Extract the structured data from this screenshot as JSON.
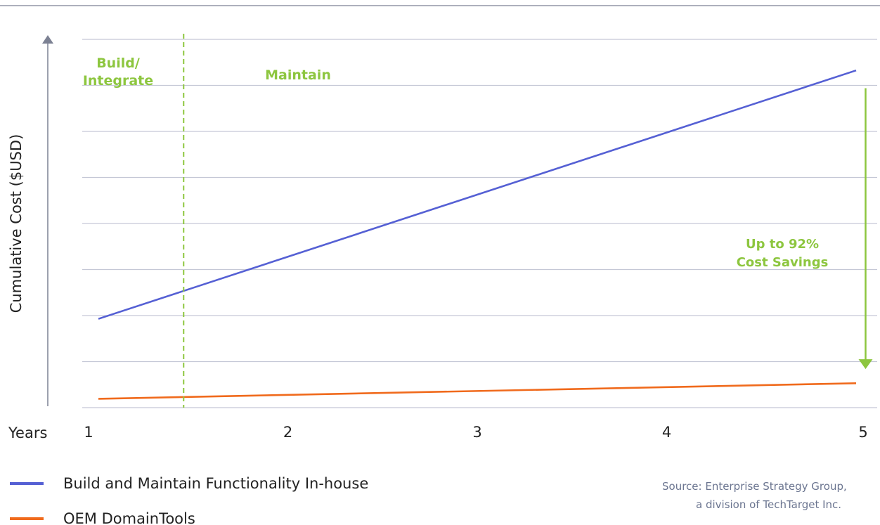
{
  "chart_data": {
    "type": "line",
    "xlabel": "Years",
    "ylabel": "Cumulative Cost ($USD)",
    "x": [
      1,
      2,
      3,
      4,
      5
    ],
    "xlim": [
      1,
      5
    ],
    "ylim": [
      0,
      8.3
    ],
    "grid": "horizontal",
    "legend_placement": "bottom-left",
    "series": [
      {
        "name": "Build and Maintain Functionality In-house",
        "color": "#5560d4",
        "points": [
          [
            1,
            2.0
          ],
          [
            5,
            7.6
          ]
        ]
      },
      {
        "name": "OEM DomainTools",
        "color": "#f06a1c",
        "points": [
          [
            1,
            0.2
          ],
          [
            5,
            0.55
          ]
        ]
      }
    ],
    "annotations": {
      "phase_divider_x": 1.45,
      "phase_color": "#8dc63f",
      "phase_build": [
        "Build/",
        "Integrate"
      ],
      "phase_maintain": "Maintain",
      "savings_lines": [
        "Up to 92%",
        "Cost Savings"
      ],
      "savings_arrow": {
        "x": 5.05,
        "y_from": 7.2,
        "y_to": 0.9
      }
    },
    "source_lines": [
      "Source: Enterprise Strategy Group,",
      "a division of TechTarget Inc."
    ]
  },
  "colors": {
    "grid": "#c5c8d6",
    "axis": "#7c8193",
    "top_rule": "#7c8193"
  }
}
